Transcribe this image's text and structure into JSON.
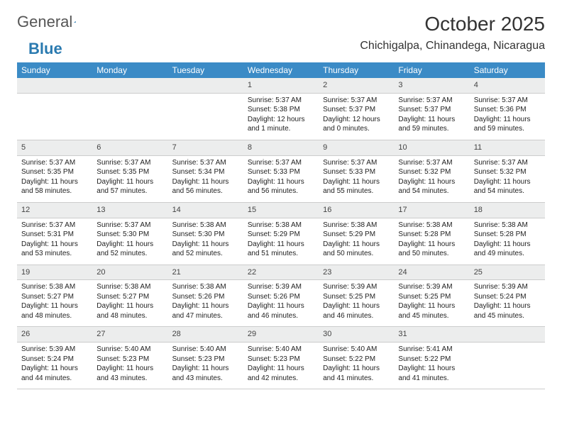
{
  "brand": {
    "part1": "General",
    "part2": "Blue"
  },
  "title": "October 2025",
  "subtitle": "Chichigalpa, Chinandega, Nicaragua",
  "colors": {
    "accent": "#3b8bc6",
    "daynum_bg": "#eceded",
    "border": "#cccccc",
    "text": "#222222"
  },
  "day_headers": [
    "Sunday",
    "Monday",
    "Tuesday",
    "Wednesday",
    "Thursday",
    "Friday",
    "Saturday"
  ],
  "weeks": [
    {
      "nums": [
        "",
        "",
        "",
        "1",
        "2",
        "3",
        "4"
      ],
      "cells": [
        null,
        null,
        null,
        {
          "sr": "Sunrise: 5:37 AM",
          "ss": "Sunset: 5:38 PM",
          "dl1": "Daylight: 12 hours",
          "dl2": "and 1 minute."
        },
        {
          "sr": "Sunrise: 5:37 AM",
          "ss": "Sunset: 5:37 PM",
          "dl1": "Daylight: 12 hours",
          "dl2": "and 0 minutes."
        },
        {
          "sr": "Sunrise: 5:37 AM",
          "ss": "Sunset: 5:37 PM",
          "dl1": "Daylight: 11 hours",
          "dl2": "and 59 minutes."
        },
        {
          "sr": "Sunrise: 5:37 AM",
          "ss": "Sunset: 5:36 PM",
          "dl1": "Daylight: 11 hours",
          "dl2": "and 59 minutes."
        }
      ]
    },
    {
      "nums": [
        "5",
        "6",
        "7",
        "8",
        "9",
        "10",
        "11"
      ],
      "cells": [
        {
          "sr": "Sunrise: 5:37 AM",
          "ss": "Sunset: 5:35 PM",
          "dl1": "Daylight: 11 hours",
          "dl2": "and 58 minutes."
        },
        {
          "sr": "Sunrise: 5:37 AM",
          "ss": "Sunset: 5:35 PM",
          "dl1": "Daylight: 11 hours",
          "dl2": "and 57 minutes."
        },
        {
          "sr": "Sunrise: 5:37 AM",
          "ss": "Sunset: 5:34 PM",
          "dl1": "Daylight: 11 hours",
          "dl2": "and 56 minutes."
        },
        {
          "sr": "Sunrise: 5:37 AM",
          "ss": "Sunset: 5:33 PM",
          "dl1": "Daylight: 11 hours",
          "dl2": "and 56 minutes."
        },
        {
          "sr": "Sunrise: 5:37 AM",
          "ss": "Sunset: 5:33 PM",
          "dl1": "Daylight: 11 hours",
          "dl2": "and 55 minutes."
        },
        {
          "sr": "Sunrise: 5:37 AM",
          "ss": "Sunset: 5:32 PM",
          "dl1": "Daylight: 11 hours",
          "dl2": "and 54 minutes."
        },
        {
          "sr": "Sunrise: 5:37 AM",
          "ss": "Sunset: 5:32 PM",
          "dl1": "Daylight: 11 hours",
          "dl2": "and 54 minutes."
        }
      ]
    },
    {
      "nums": [
        "12",
        "13",
        "14",
        "15",
        "16",
        "17",
        "18"
      ],
      "cells": [
        {
          "sr": "Sunrise: 5:37 AM",
          "ss": "Sunset: 5:31 PM",
          "dl1": "Daylight: 11 hours",
          "dl2": "and 53 minutes."
        },
        {
          "sr": "Sunrise: 5:37 AM",
          "ss": "Sunset: 5:30 PM",
          "dl1": "Daylight: 11 hours",
          "dl2": "and 52 minutes."
        },
        {
          "sr": "Sunrise: 5:38 AM",
          "ss": "Sunset: 5:30 PM",
          "dl1": "Daylight: 11 hours",
          "dl2": "and 52 minutes."
        },
        {
          "sr": "Sunrise: 5:38 AM",
          "ss": "Sunset: 5:29 PM",
          "dl1": "Daylight: 11 hours",
          "dl2": "and 51 minutes."
        },
        {
          "sr": "Sunrise: 5:38 AM",
          "ss": "Sunset: 5:29 PM",
          "dl1": "Daylight: 11 hours",
          "dl2": "and 50 minutes."
        },
        {
          "sr": "Sunrise: 5:38 AM",
          "ss": "Sunset: 5:28 PM",
          "dl1": "Daylight: 11 hours",
          "dl2": "and 50 minutes."
        },
        {
          "sr": "Sunrise: 5:38 AM",
          "ss": "Sunset: 5:28 PM",
          "dl1": "Daylight: 11 hours",
          "dl2": "and 49 minutes."
        }
      ]
    },
    {
      "nums": [
        "19",
        "20",
        "21",
        "22",
        "23",
        "24",
        "25"
      ],
      "cells": [
        {
          "sr": "Sunrise: 5:38 AM",
          "ss": "Sunset: 5:27 PM",
          "dl1": "Daylight: 11 hours",
          "dl2": "and 48 minutes."
        },
        {
          "sr": "Sunrise: 5:38 AM",
          "ss": "Sunset: 5:27 PM",
          "dl1": "Daylight: 11 hours",
          "dl2": "and 48 minutes."
        },
        {
          "sr": "Sunrise: 5:38 AM",
          "ss": "Sunset: 5:26 PM",
          "dl1": "Daylight: 11 hours",
          "dl2": "and 47 minutes."
        },
        {
          "sr": "Sunrise: 5:39 AM",
          "ss": "Sunset: 5:26 PM",
          "dl1": "Daylight: 11 hours",
          "dl2": "and 46 minutes."
        },
        {
          "sr": "Sunrise: 5:39 AM",
          "ss": "Sunset: 5:25 PM",
          "dl1": "Daylight: 11 hours",
          "dl2": "and 46 minutes."
        },
        {
          "sr": "Sunrise: 5:39 AM",
          "ss": "Sunset: 5:25 PM",
          "dl1": "Daylight: 11 hours",
          "dl2": "and 45 minutes."
        },
        {
          "sr": "Sunrise: 5:39 AM",
          "ss": "Sunset: 5:24 PM",
          "dl1": "Daylight: 11 hours",
          "dl2": "and 45 minutes."
        }
      ]
    },
    {
      "nums": [
        "26",
        "27",
        "28",
        "29",
        "30",
        "31",
        ""
      ],
      "cells": [
        {
          "sr": "Sunrise: 5:39 AM",
          "ss": "Sunset: 5:24 PM",
          "dl1": "Daylight: 11 hours",
          "dl2": "and 44 minutes."
        },
        {
          "sr": "Sunrise: 5:40 AM",
          "ss": "Sunset: 5:23 PM",
          "dl1": "Daylight: 11 hours",
          "dl2": "and 43 minutes."
        },
        {
          "sr": "Sunrise: 5:40 AM",
          "ss": "Sunset: 5:23 PM",
          "dl1": "Daylight: 11 hours",
          "dl2": "and 43 minutes."
        },
        {
          "sr": "Sunrise: 5:40 AM",
          "ss": "Sunset: 5:23 PM",
          "dl1": "Daylight: 11 hours",
          "dl2": "and 42 minutes."
        },
        {
          "sr": "Sunrise: 5:40 AM",
          "ss": "Sunset: 5:22 PM",
          "dl1": "Daylight: 11 hours",
          "dl2": "and 41 minutes."
        },
        {
          "sr": "Sunrise: 5:41 AM",
          "ss": "Sunset: 5:22 PM",
          "dl1": "Daylight: 11 hours",
          "dl2": "and 41 minutes."
        },
        null
      ]
    }
  ]
}
